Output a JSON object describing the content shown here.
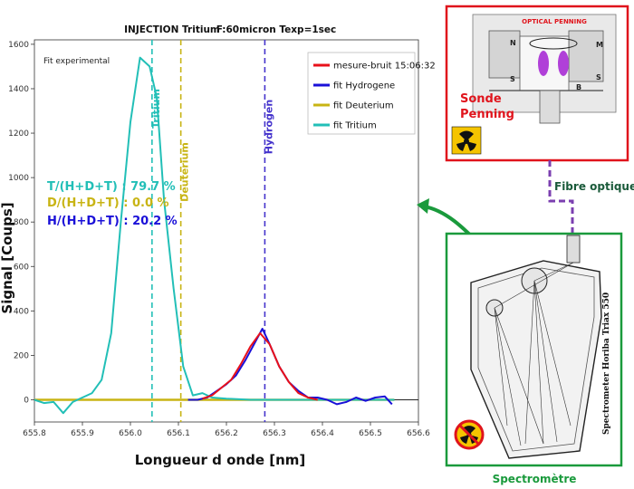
{
  "chart_data": {
    "type": "line",
    "top_labels": [
      "INJECTION Tritium",
      "F:60micron Texp=1sec"
    ],
    "annotation": "Fit experimental",
    "xlabel": "Longueur d onde [nm]",
    "ylabel": "Signal [Coups]",
    "xlim": [
      655.8,
      656.6
    ],
    "ylim": [
      -100,
      1620
    ],
    "x_ticks": [
      "655.8",
      "655.9",
      "656.0",
      "656.1",
      "656.2",
      "656.3",
      "656.4",
      "656.5",
      "656.6"
    ],
    "y_ticks": [
      "0",
      "200",
      "400",
      "600",
      "800",
      "1000",
      "1200",
      "1400",
      "1600"
    ],
    "x_tick_values": [
      655.8,
      655.9,
      656.0,
      656.1,
      656.2,
      656.3,
      656.4,
      656.5,
      656.6
    ],
    "y_tick_values": [
      0,
      200,
      400,
      600,
      800,
      1000,
      1200,
      1400,
      1600
    ],
    "grid": false,
    "legend_position": "top-right",
    "series": [
      {
        "name": "mesure-bruit 15:06:32",
        "color": "#e8101a",
        "x": [
          656.15,
          656.17,
          656.19,
          656.21,
          656.23,
          656.25,
          656.27,
          656.29,
          656.31,
          656.33,
          656.35,
          656.37,
          656.39
        ],
        "y": [
          5,
          20,
          55,
          90,
          160,
          240,
          300,
          250,
          150,
          80,
          30,
          10,
          0
        ]
      },
      {
        "name": "fit Hydrogene",
        "color": "#1a10d8",
        "x": [
          656.12,
          656.14,
          656.16,
          656.18,
          656.2,
          656.22,
          656.24,
          656.26,
          656.275,
          656.29,
          656.31,
          656.33,
          656.35,
          656.37,
          656.39,
          656.41,
          656.43,
          656.45,
          656.47,
          656.49,
          656.51,
          656.53,
          656.545
        ],
        "y": [
          0,
          0,
          10,
          40,
          70,
          110,
          180,
          260,
          320,
          250,
          150,
          80,
          40,
          10,
          10,
          0,
          -20,
          -10,
          10,
          -5,
          10,
          15,
          -20
        ]
      },
      {
        "name": "fit Deuterium",
        "color": "#c8b414",
        "x": [
          655.8,
          655.9,
          656.0,
          656.1,
          656.2,
          656.3,
          656.4,
          656.5,
          656.55
        ],
        "y": [
          0,
          0,
          0,
          0,
          0,
          0,
          0,
          0,
          0
        ]
      },
      {
        "name": "fit Tritium",
        "color": "#22bfb7",
        "x": [
          655.8,
          655.82,
          655.84,
          655.86,
          655.88,
          655.9,
          655.92,
          655.94,
          655.96,
          655.98,
          656.0,
          656.02,
          656.04,
          656.055,
          656.07,
          656.09,
          656.11,
          656.13,
          656.15,
          656.17,
          656.2,
          656.25,
          656.3,
          656.4,
          656.5,
          656.55
        ],
        "y": [
          0,
          -15,
          -10,
          -60,
          -10,
          10,
          30,
          90,
          300,
          800,
          1250,
          1540,
          1500,
          1360,
          900,
          500,
          150,
          20,
          30,
          10,
          5,
          0,
          0,
          0,
          0,
          0
        ]
      }
    ],
    "vertical_lines": [
      {
        "label": "Tritium",
        "x": 656.045,
        "color": "#22bfb7"
      },
      {
        "label": "Deuterium",
        "x": 656.105,
        "color": "#c8b414"
      },
      {
        "label": "Hydrogen",
        "x": 656.28,
        "color": "#4433cc"
      }
    ],
    "ratio_texts": [
      {
        "text": "T/(H+D+T) : 79.7 %",
        "color": "#22bfb7"
      },
      {
        "text": "D/(H+D+T) : 0.0 %",
        "color": "#c8b414"
      },
      {
        "text": "H/(H+D+T) : 20.2 %",
        "color": "#1a10d8"
      }
    ]
  },
  "diagram": {
    "probe": {
      "title_lines": [
        "Sonde",
        "Penning"
      ],
      "header": "OPTICAL PENNING",
      "small_labels": [
        "N",
        "S",
        "M",
        "S",
        "B"
      ],
      "border_color": "#e0141c",
      "label_color": "#e0141c"
    },
    "fiber_label": "Fibre optique",
    "fiber_color": "#7b3fb0",
    "spectrometer": {
      "rotated_label": "Spectrometer Horiba Triax 550",
      "caption": "Spectromètre",
      "border_color": "#1a9a3c"
    },
    "arrow_color": "#1a9a3c"
  }
}
